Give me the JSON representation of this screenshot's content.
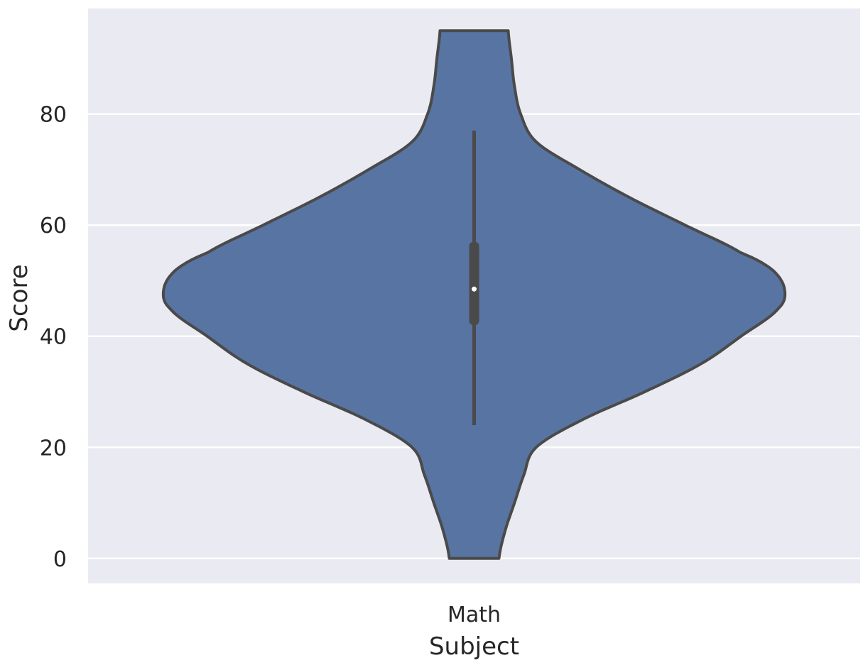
{
  "chart_data": {
    "type": "violin",
    "xlabel": "Subject",
    "ylabel": "Score",
    "categories": [
      "Math"
    ],
    "ylim": [
      -4.5,
      99
    ],
    "yticks": [
      0,
      20,
      40,
      60,
      80
    ],
    "grid": true,
    "violins": [
      {
        "category": "Math",
        "data_min": 0,
        "data_max": 95,
        "whisker_low": 24,
        "q1": 42,
        "median": 48.5,
        "q3": 57,
        "whisker_high": 77,
        "density_profile": [
          [
            0,
            0.08
          ],
          [
            5,
            0.1
          ],
          [
            10,
            0.13
          ],
          [
            15,
            0.16
          ],
          [
            20,
            0.2
          ],
          [
            25,
            0.35
          ],
          [
            30,
            0.55
          ],
          [
            35,
            0.73
          ],
          [
            40,
            0.86
          ],
          [
            45,
            0.98
          ],
          [
            48.5,
            1.0
          ],
          [
            52,
            0.96
          ],
          [
            55,
            0.86
          ],
          [
            60,
            0.68
          ],
          [
            65,
            0.5
          ],
          [
            70,
            0.34
          ],
          [
            75,
            0.2
          ],
          [
            80,
            0.15
          ],
          [
            85,
            0.13
          ],
          [
            90,
            0.12
          ],
          [
            95,
            0.11
          ]
        ]
      }
    ],
    "colors": {
      "violin_fill": "#5874a3",
      "outline": "#4a4a4a",
      "axes_background": "#eaeaf2",
      "grid": "#ffffff"
    }
  }
}
